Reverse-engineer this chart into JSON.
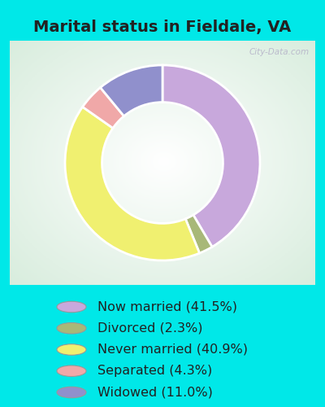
{
  "title": "Marital status in Fieldale, VA",
  "slices": [
    {
      "label": "Now married (41.5%)",
      "value": 41.5,
      "color": "#c8a8dc"
    },
    {
      "label": "Divorced (2.3%)",
      "value": 2.3,
      "color": "#a8b878"
    },
    {
      "label": "Never married (40.9%)",
      "value": 40.9,
      "color": "#f0f070"
    },
    {
      "label": "Separated (4.3%)",
      "value": 4.3,
      "color": "#f0a8a8"
    },
    {
      "label": "Widowed (11.0%)",
      "value": 11.0,
      "color": "#9090cc"
    }
  ],
  "bg_cyan": "#00e8e8",
  "watermark": "City-Data.com",
  "title_fontsize": 14,
  "legend_fontsize": 11.5,
  "start_angle": 90
}
